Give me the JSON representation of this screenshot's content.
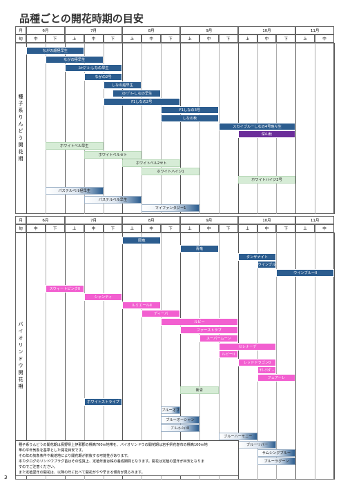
{
  "title": "品種ごとの開花時期の目安",
  "header": {
    "month_label": "月",
    "jun_label": "旬",
    "months": [
      "6月",
      "7月",
      "8月",
      "9月",
      "10月",
      "11月"
    ],
    "juns": [
      "中",
      "下",
      "上",
      "中",
      "下",
      "上",
      "中",
      "下",
      "上",
      "中",
      "下",
      "上",
      "中",
      "下",
      "上",
      "中"
    ]
  },
  "sections": [
    {
      "label": "種子系りんどう開花期",
      "bars": [
        {
          "label": "ながの超極早生",
          "start": 0,
          "end": 3,
          "style": "blue"
        },
        {
          "label": "ながの極早生",
          "start": 1,
          "end": 4,
          "style": "blue"
        },
        {
          "label": "ｽｶｲﾌﾞﾙｰしなの早生",
          "start": 2,
          "end": 5,
          "style": "blue"
        },
        {
          "label": "ながの2号",
          "start": 3,
          "end": 5,
          "style": "blue"
        },
        {
          "label": "しなの超早生",
          "start": 4,
          "end": 6,
          "style": "blue"
        },
        {
          "label": "ｽｶｲﾌﾞﾙｰしなの早生",
          "start": 4.5,
          "end": 7,
          "style": "blue"
        },
        {
          "label": "F1しなの2号",
          "start": 4,
          "end": 8,
          "style": "blue"
        },
        {
          "label": "F1しなの3号",
          "start": 7,
          "end": 10,
          "style": "blue"
        },
        {
          "label": "しなの秋",
          "start": 7,
          "end": 10,
          "style": "blue"
        },
        {
          "label": "スカイブルーしなの4号晩々生",
          "start": 10,
          "end": 14,
          "style": "blue"
        },
        {
          "label": "深山秋",
          "start": 11,
          "end": 14,
          "style": "purple"
        },
        {
          "label": "ホワイトベル早生",
          "start": 1,
          "end": 4,
          "style": "green"
        },
        {
          "label": "ホワイトベルセト",
          "start": 3,
          "end": 6,
          "style": "green"
        },
        {
          "label": "ホワイトベル2セト",
          "start": 5,
          "end": 8,
          "style": "green"
        },
        {
          "label": "ホワイトハイジ1",
          "start": 6,
          "end": 9,
          "style": "green"
        },
        {
          "label": "ホワイトハイジ2号",
          "start": 11,
          "end": 14,
          "style": "green"
        },
        {
          "label": "パステルベル極早生",
          "start": 1,
          "end": 4,
          "style": "gradient"
        },
        {
          "label": "パステルベル早生",
          "start": 3,
          "end": 6,
          "style": "gradient"
        },
        {
          "label": "マイファンタジー1",
          "start": 6,
          "end": 9,
          "style": "gradient"
        }
      ]
    },
    {
      "label": "バイオリンドウ開花期",
      "bars": [
        {
          "label": "岡竜",
          "start": 5,
          "end": 7,
          "style": "blue"
        },
        {
          "label": "青竜",
          "start": 8,
          "end": 10,
          "style": "blue"
        },
        {
          "label": "タンザナイト",
          "start": 11,
          "end": 13,
          "style": "blue"
        },
        {
          "label": "ウインブルー",
          "start": 12,
          "end": 13,
          "style": "blue"
        },
        {
          "label": "ウインブルーII",
          "start": 13,
          "end": 16,
          "style": "blue"
        },
        {
          "label": "スウィートピンクII",
          "start": 1,
          "end": 3,
          "style": "pink"
        },
        {
          "label": "シャンティ",
          "start": 3,
          "end": 5,
          "style": "pink"
        },
        {
          "label": "ルミエールII",
          "start": 5,
          "end": 7,
          "style": "pink"
        },
        {
          "label": "ディーバ",
          "start": 6,
          "end": 8,
          "style": "pink"
        },
        {
          "label": "ルビー",
          "start": 7,
          "end": 11,
          "style": "pink"
        },
        {
          "label": "ファーストラブ",
          "start": 8,
          "end": 11,
          "style": "pink"
        },
        {
          "label": "スーパームーン",
          "start": 9,
          "end": 11,
          "style": "pink"
        },
        {
          "label": "セレナーデ",
          "start": 10,
          "end": 13,
          "style": "pink"
        },
        {
          "label": "ルビーII",
          "start": 10,
          "end": 11,
          "style": "pink"
        },
        {
          "label": "レッドドラゴン0",
          "start": 11,
          "end": 13,
          "style": "pink"
        },
        {
          "label": "ｻﾏｰﾃﾝﾀﾞｰ",
          "start": 12,
          "end": 13,
          "style": "pink"
        },
        {
          "label": "フェアーレ",
          "start": 12,
          "end": 14,
          "style": "pink"
        },
        {
          "label": "新青",
          "start": 8,
          "end": 10,
          "style": "green"
        },
        {
          "label": "ホワイトストライプ",
          "start": 3,
          "end": 5,
          "style": "blue"
        },
        {
          "label": "ブルーオブジェ",
          "start": 7,
          "end": 8,
          "style": "gradient"
        },
        {
          "label": "ブルーオーシャン",
          "start": 7,
          "end": 9,
          "style": "gradient"
        },
        {
          "label": "ﾌﾞﾙｰｵｰｼｬﾝII",
          "start": 7,
          "end": 9,
          "style": "gradient"
        },
        {
          "label": "ブルーハーモニー",
          "start": 10,
          "end": 12,
          "style": "gradient"
        },
        {
          "label": "ブルーリバー",
          "start": 11,
          "end": 13,
          "style": "gradient"
        },
        {
          "label": "サムシングブルー",
          "start": 12,
          "end": 14,
          "style": "gradient"
        },
        {
          "label": "ブルーラグーン",
          "start": 12,
          "end": 14,
          "style": "gradient"
        }
      ]
    }
  ],
  "notes": [
    "種子系りんどうの開花期は長野県上伊那郡の標高700m地帯を、バイオリンドウの開花期は岩手県花巻市の標高100m地",
    "帯の平年気象を基準とした開花目安です。",
    "その年の気象条件や栽培地により開花期が前後する可能性があります。",
    "本カタログのリンドウプラグ苗はその性質上、定植年度は株の養成期間となります。開花は定植の翌年が目安となりま",
    "すのでご注意ください。",
    "また定植翌年の開花は、以降の年に比べて開花がやや早まる傾向が見られます。"
  ],
  "page_number": "3"
}
